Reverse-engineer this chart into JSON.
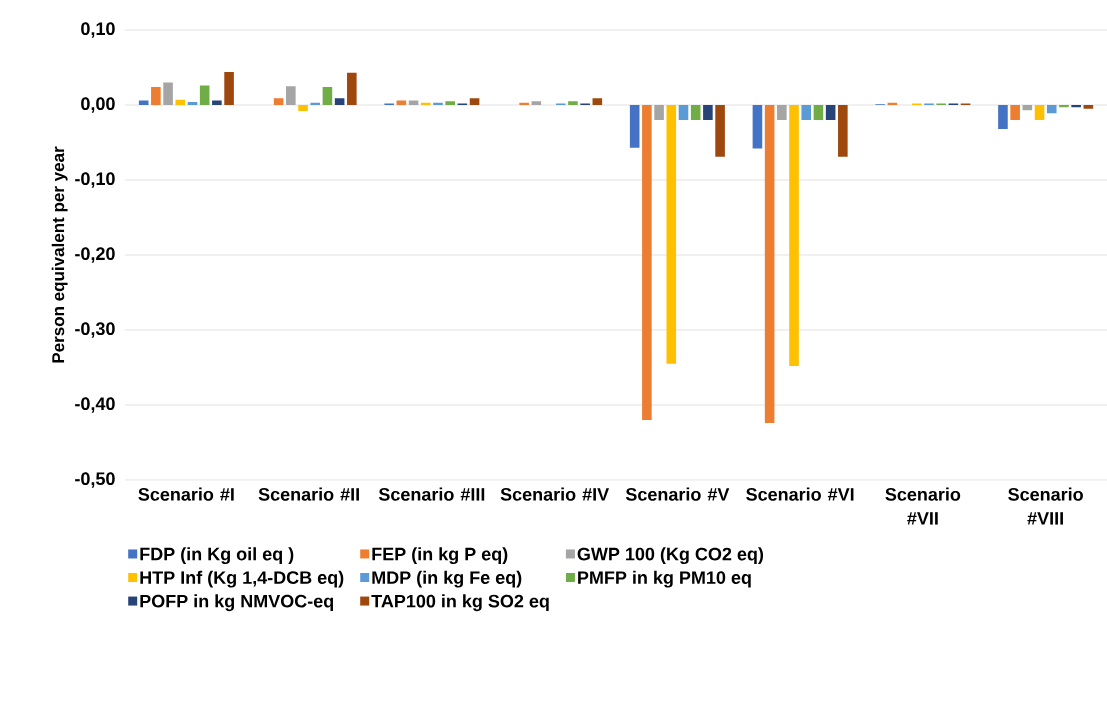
{
  "chart_data": {
    "type": "bar",
    "ylabel": "Person equivalent per year",
    "categories": [
      "Scenario #I",
      "Scenario #II",
      "Scenario #III",
      "Scenario #IV",
      "Scenario #V",
      "Scenario #VI",
      "Scenario #VII",
      "Scenario #VIII"
    ],
    "series": [
      {
        "name": "FDP (in Kg oil eq )",
        "color": "#4472c4",
        "values": [
          0.006,
          0,
          0.002,
          0,
          -0.057,
          -0.058,
          0.001,
          -0.032
        ]
      },
      {
        "name": "FEP (in kg P eq)",
        "color": "#ed7d31",
        "values": [
          0.024,
          0.009,
          0.006,
          0.003,
          -0.42,
          -0.424,
          0.003,
          -0.02
        ]
      },
      {
        "name": "GWP 100 (Kg CO2 eq)",
        "color": "#a5a5a5",
        "values": [
          0.03,
          0.025,
          0.006,
          0.005,
          -0.02,
          -0.02,
          0,
          -0.007
        ]
      },
      {
        "name": "HTP Inf (Kg 1,4-DCB eq)",
        "color": "#ffc000",
        "values": [
          0.007,
          -0.008,
          0.003,
          0,
          -0.345,
          -0.348,
          0.002,
          -0.02
        ]
      },
      {
        "name": "MDP (in kg Fe eq)",
        "color": "#5b9bd5",
        "values": [
          0.004,
          0.003,
          0.003,
          0.002,
          -0.02,
          -0.02,
          0.002,
          -0.011
        ]
      },
      {
        "name": "PMFP in kg PM10 eq",
        "color": "#70ad47",
        "values": [
          0.026,
          0.024,
          0.005,
          0.005,
          -0.02,
          -0.02,
          0.002,
          -0.003
        ]
      },
      {
        "name": "POFP in kg NMVOC-eq",
        "color": "#264478",
        "values": [
          0.006,
          0.009,
          0.002,
          0.002,
          -0.02,
          -0.02,
          0.002,
          -0.003
        ]
      },
      {
        "name": "TAP100 in kg SO2 eq",
        "color": "#9e480e",
        "values": [
          0.044,
          0.043,
          0.009,
          0.009,
          -0.069,
          -0.069,
          0.002,
          -0.005
        ]
      }
    ],
    "ylim": [
      -0.5,
      0.1
    ],
    "yticks": [
      {
        "value": -0.5,
        "label": "-0,50"
      },
      {
        "value": -0.4,
        "label": "-0,40"
      },
      {
        "value": -0.3,
        "label": "-0,30"
      },
      {
        "value": -0.2,
        "label": "-0,20"
      },
      {
        "value": -0.1,
        "label": "-0,10"
      },
      {
        "value": 0,
        "label": "0,00"
      },
      {
        "value": 0.1,
        "label": "0,10"
      }
    ],
    "grid": "y",
    "legend": "bottom"
  }
}
